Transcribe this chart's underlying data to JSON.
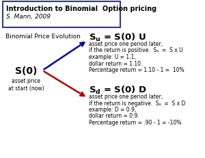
{
  "title": "Introduction to Binomial  Option pricing",
  "subtitle": "S. Mann, 2009",
  "label_binomial": "Binomial Price Evolution",
  "label_s0": "S(0)",
  "label_s0_sub": "asset price\nat start (now)",
  "text_su_label": "$\\mathbf{S_u}$ = S(0) U",
  "text_sd_label": "$\\mathbf{S_d}$ = S(0) D",
  "text_up_line1": "asset price one period later,",
  "text_up_line2": "if the return is positive.  Sₐ  =  S x U",
  "text_up_line3": "example: U = 1.1,",
  "text_up_line4": "dollar return = 1.10.",
  "text_up_line5": "Percentage return = 1.10 - 1 =  10%",
  "text_dn_line1": "asset price one period later,",
  "text_dn_line2": "if the return is negative.  Sₐ  =  S x D",
  "text_dn_line3": "example: D = 0.9,",
  "text_dn_line4": "dollar return = 0.9.",
  "text_dn_line5": "Percentage return = .90 - 1 = -10%",
  "arrow_up_color": "#0000bb",
  "arrow_dn_color": "#bb0000",
  "bg_color": "#ffffff",
  "title_box_color": "#3333aa"
}
